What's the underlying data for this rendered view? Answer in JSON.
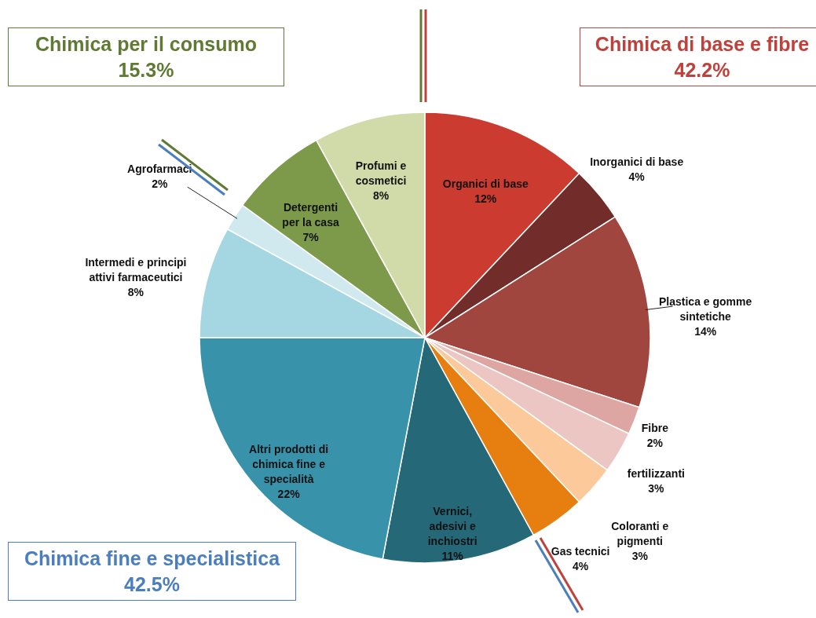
{
  "chart_data": {
    "type": "pie",
    "categories": [
      "Organici di base",
      "Inorganici di base",
      "Plastica e gomme sintetiche",
      "Fibre",
      "fertilizzanti",
      "Coloranti e pigmenti",
      "Gas tecnici",
      "Vernici, adesivi e inchiostri",
      "Altri prodotti di chimica fine e specialità",
      "Intermedi e principi attivi farmaceutici",
      "Agrofarmaci",
      "Detergenti per la casa",
      "Profumi e cosmetici"
    ],
    "values": [
      12,
      4,
      14,
      2,
      3,
      3,
      4,
      11,
      22,
      8,
      2,
      7,
      8
    ],
    "colors": [
      "#cc3b2f",
      "#722c2a",
      "#a0463f",
      "#dea6a2",
      "#ebc6c3",
      "#fbc99a",
      "#e67e10",
      "#256877",
      "#3893aa",
      "#a5d7e3",
      "#cfe9ef",
      "#7d9a4a",
      "#d1dbaa"
    ],
    "data_labels": true,
    "value_labels": [
      "12%",
      "4%",
      "14%",
      "2%",
      "3%",
      "3%",
      "4%",
      "11%",
      "22%",
      "8%",
      "2%",
      "7%",
      "8%"
    ],
    "annotations": [
      "Chimica per il consumo\n15.3%",
      "Chimica di base e fibre\n42.2%",
      "Chimica fine e specialistica\n42.5%"
    ]
  }
}
